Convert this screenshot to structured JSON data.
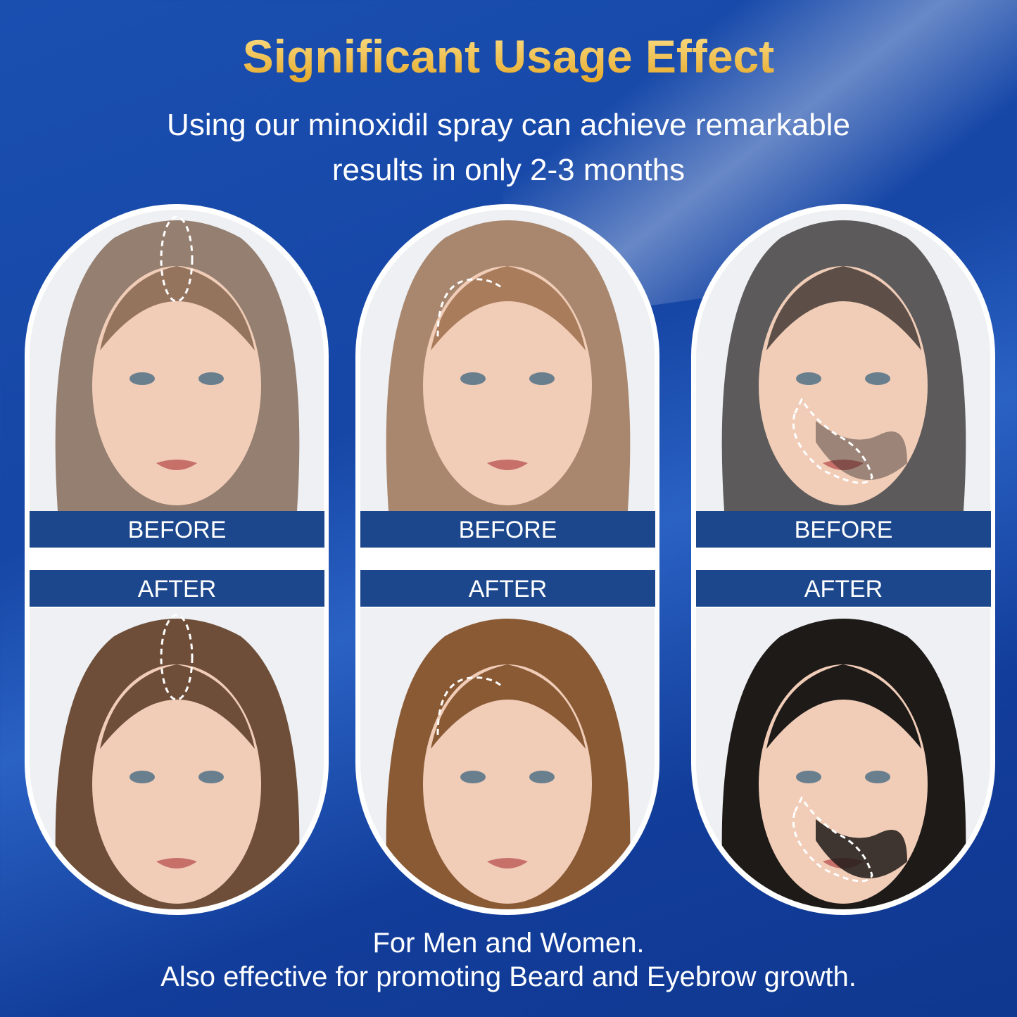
{
  "header": {
    "title": "Significant Usage Effect",
    "subtitle_line1": "Using our minoxidil spray can achieve remarkable",
    "subtitle_line2": "results in only 2-3 months"
  },
  "cards": [
    {
      "subject": "woman-hair-part",
      "before_label": "BEFORE",
      "after_label": "AFTER",
      "hair": "#6e4e38"
    },
    {
      "subject": "man-hairline",
      "before_label": "BEFORE",
      "after_label": "AFTER",
      "hair": "#8a5a35"
    },
    {
      "subject": "man-beard",
      "before_label": "BEFORE",
      "after_label": "AFTER",
      "hair": "#1e1a18"
    }
  ],
  "footer": {
    "line1": "For Men and Women.",
    "line2": "Also effective for promoting Beard and Eyebrow growth."
  },
  "colors": {
    "background": "#1646a6",
    "title_gold": "#f6cc55",
    "label_bar": "#1c478c"
  }
}
